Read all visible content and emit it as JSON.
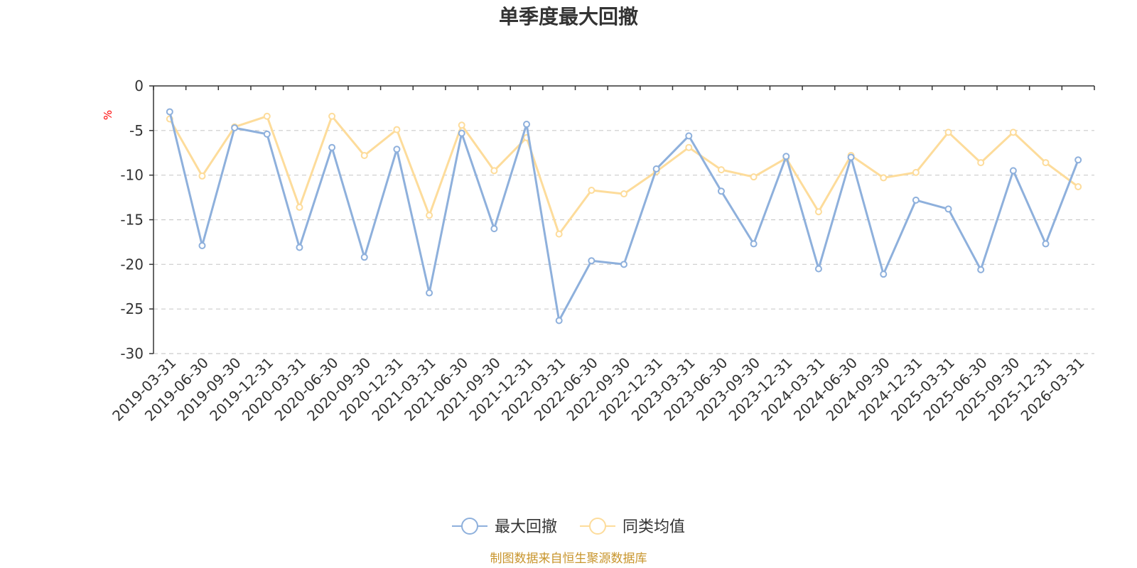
{
  "chart_data": {
    "type": "line",
    "title": "单季度最大回撤",
    "ylabel": "%",
    "xlabel": "",
    "ylim": [
      -30,
      0
    ],
    "yticks": [
      "0",
      "-5",
      "-10",
      "-15",
      "-20",
      "-25",
      "-30"
    ],
    "categories": [
      "2019-03-31",
      "2019-06-30",
      "2019-09-30",
      "2019-12-31",
      "2020-03-31",
      "2020-06-30",
      "2020-09-30",
      "2020-12-31",
      "2021-03-31",
      "2021-06-30",
      "2021-09-30",
      "2021-12-31",
      "2022-03-31",
      "2022-06-30",
      "2022-09-30",
      "2022-12-31",
      "2023-03-31",
      "2023-06-30",
      "2023-09-30",
      "2023-12-31",
      "2024-03-31",
      "2024-06-30",
      "2024-09-30",
      "2024-12-31",
      "2025-03-31",
      "2025-06-30",
      "2025-09-30",
      "2025-12-31",
      "2026-03-31"
    ],
    "series": [
      {
        "name": "最大回撤",
        "color": "#8eb0dc",
        "values": [
          -2.9,
          -17.9,
          -4.7,
          -5.4,
          -18.1,
          -6.9,
          -19.2,
          -7.1,
          -23.2,
          -5.3,
          -16.0,
          -4.3,
          -26.3,
          -19.6,
          -20.0,
          -9.3,
          -5.6,
          -11.8,
          -17.7,
          -7.9,
          -20.5,
          -8.0,
          -21.1,
          -12.8,
          -13.8,
          -20.6,
          -9.5,
          -17.7,
          -8.3
        ]
      },
      {
        "name": "同类均值",
        "color": "#fddc9b",
        "values": [
          -3.7,
          -10.1,
          -4.6,
          -3.4,
          -13.6,
          -3.4,
          -7.8,
          -4.9,
          -14.5,
          -4.4,
          -9.5,
          -5.8,
          -16.6,
          -11.7,
          -12.1,
          -9.6,
          -6.9,
          -9.4,
          -10.2,
          -8.1,
          -14.1,
          -7.8,
          -10.3,
          -9.7,
          -5.2,
          -8.6,
          -5.2,
          -8.6,
          -11.3
        ]
      }
    ],
    "grid": true,
    "legend_position": "bottom"
  },
  "source_note": "制图数据来自恒生聚源数据库"
}
